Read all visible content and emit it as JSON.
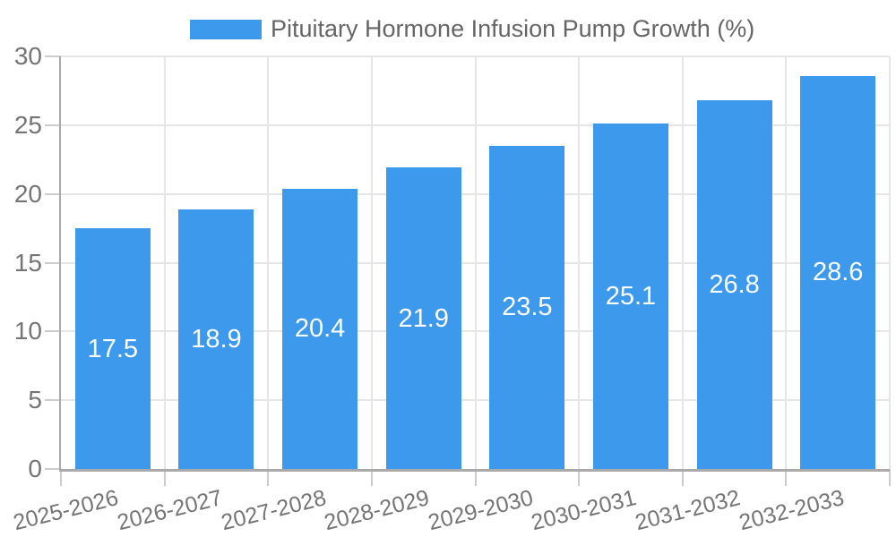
{
  "chart_data": {
    "type": "bar",
    "title": "Pituitary Hormone Infusion Pump Growth (%)",
    "categories": [
      "2025-2026",
      "2026-2027",
      "2027-2028",
      "2028-2029",
      "2029-2030",
      "2030-2031",
      "2031-2032",
      "2032-2033"
    ],
    "values": [
      17.5,
      18.9,
      20.4,
      21.9,
      23.5,
      25.1,
      26.8,
      28.6
    ],
    "series": [
      {
        "name": "Pituitary Hormone Infusion Pump Growth (%)",
        "values": [
          17.5,
          18.9,
          20.4,
          21.9,
          23.5,
          25.1,
          26.8,
          28.6
        ]
      }
    ],
    "xlabel": "",
    "ylabel": "",
    "ylim": [
      0,
      30
    ],
    "y_ticks": [
      0,
      5,
      10,
      15,
      20,
      25,
      30
    ],
    "y_tick_labels": [
      "0",
      "5",
      "10",
      "15",
      "20",
      "25",
      "30"
    ],
    "grid": "on",
    "legend_position": "top",
    "value_labels": "inside-center",
    "colors": {
      "bar": "#3C99EC",
      "value_label": "#ffffff",
      "axis_text": "#757575",
      "legend_text": "#666666",
      "gridline": "#e6e6e6",
      "axis_line": "#aaaaaa",
      "tick_mark": "#cccccc"
    }
  }
}
